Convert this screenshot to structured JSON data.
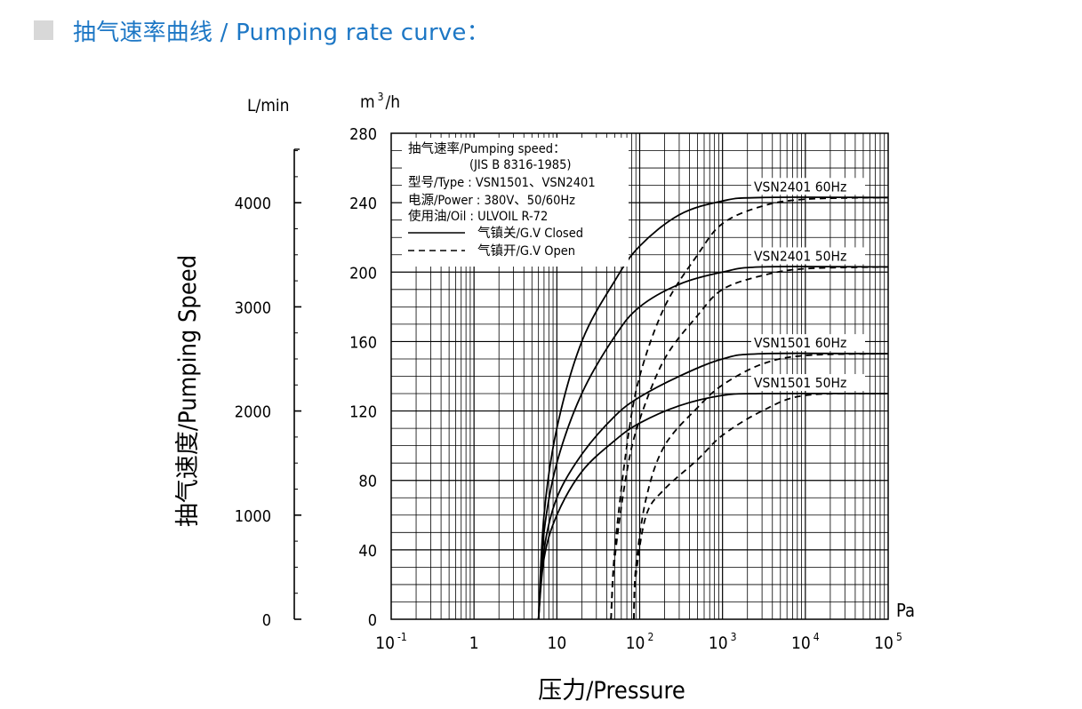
{
  "header": {
    "marker_color": "#d8d8d8",
    "title": "抽气速率曲线 / Pumping rate curve：",
    "title_color": "#1d77c5"
  },
  "chart_data": {
    "type": "line",
    "x_scale": "log",
    "xlim": [
      0.1,
      100000
    ],
    "ylim": [
      0,
      280
    ],
    "ylim_secondary": [
      0,
      4667
    ],
    "grid": true,
    "xlabel": "压力/Pressure",
    "x_unit": "Pa",
    "ylabel": "抽气速度/Pumping Speed",
    "y_unit": "m³/h",
    "y_unit_base": "m",
    "y_unit_sup": "3",
    "y_unit_rest": "/h",
    "y_secondary_unit": "L/min",
    "x_ticks": [
      {
        "value": 0.1,
        "base": "10",
        "exp": "-1"
      },
      {
        "value": 1,
        "base": "1",
        "exp": ""
      },
      {
        "value": 10,
        "base": "10",
        "exp": ""
      },
      {
        "value": 100,
        "base": "10",
        "exp": "2"
      },
      {
        "value": 1000,
        "base": "10",
        "exp": "3"
      },
      {
        "value": 10000,
        "base": "10",
        "exp": "4"
      },
      {
        "value": 100000,
        "base": "10",
        "exp": "5"
      }
    ],
    "y_ticks": [
      0,
      40,
      80,
      120,
      160,
      200,
      240,
      280
    ],
    "y_secondary_ticks": [
      0,
      1000,
      2000,
      3000,
      4000
    ],
    "legend": {
      "position": "top-left",
      "lines": [
        "抽气速率/Pumping speed：",
        "(JIS B 8316-1985)",
        "型号/Type  : VSN1501、VSN2401",
        "电源/Power  : 380V、50/60Hz",
        "使用油/Oil : ULVOIL R-72"
      ],
      "entries": [
        {
          "style": "solid",
          "label": "气镇关/G.V Closed"
        },
        {
          "style": "dashed",
          "label": "气镇开/G.V Open"
        }
      ]
    },
    "series": [
      {
        "name": "VSN2401 60Hz",
        "style": "solid",
        "x": [
          6,
          7,
          10,
          20,
          50,
          100,
          300,
          1000,
          3000,
          100000
        ],
        "y": [
          0,
          60,
          110,
          160,
          195,
          215,
          233,
          241,
          243,
          243
        ]
      },
      {
        "name": "VSN2401 50Hz",
        "style": "solid",
        "x": [
          6,
          7,
          10,
          20,
          50,
          100,
          300,
          1000,
          3000,
          100000
        ],
        "y": [
          0,
          50,
          90,
          130,
          163,
          180,
          193,
          200,
          203,
          203
        ]
      },
      {
        "name": "VSN1501 60Hz",
        "style": "solid",
        "x": [
          6,
          7,
          10,
          20,
          50,
          100,
          300,
          1000,
          3000,
          100000
        ],
        "y": [
          0,
          40,
          70,
          95,
          117,
          128,
          140,
          150,
          153,
          153
        ]
      },
      {
        "name": "VSN1501 50Hz",
        "style": "solid",
        "x": [
          6,
          7,
          10,
          20,
          50,
          100,
          300,
          1000,
          3000,
          100000
        ],
        "y": [
          0,
          35,
          60,
          85,
          103,
          113,
          123,
          129,
          130,
          130
        ]
      },
      {
        "name": "VSN2401 60Hz",
        "style": "dashed",
        "x": [
          45,
          50,
          70,
          100,
          200,
          500,
          1000,
          3000,
          10000,
          100000
        ],
        "y": [
          0,
          40,
          100,
          140,
          180,
          210,
          228,
          238,
          242,
          243
        ]
      },
      {
        "name": "VSN2401 50Hz",
        "style": "dashed",
        "x": [
          45,
          50,
          70,
          100,
          200,
          500,
          1000,
          3000,
          10000,
          100000
        ],
        "y": [
          0,
          35,
          85,
          115,
          150,
          175,
          190,
          198,
          202,
          203
        ]
      },
      {
        "name": "VSN1501 60Hz",
        "style": "dashed",
        "x": [
          85,
          90,
          120,
          200,
          500,
          1000,
          3000,
          10000,
          100000
        ],
        "y": [
          0,
          30,
          70,
          100,
          122,
          135,
          147,
          152,
          153
        ]
      },
      {
        "name": "VSN1501 50Hz",
        "style": "dashed",
        "x": [
          85,
          90,
          120,
          200,
          500,
          1000,
          3000,
          10000,
          100000
        ],
        "y": [
          0,
          25,
          60,
          75,
          92,
          106,
          120,
          129,
          130
        ]
      }
    ],
    "curve_labels": [
      {
        "text": "VSN2401 60Hz",
        "y": 243
      },
      {
        "text": "VSN2401 50Hz",
        "y": 203
      },
      {
        "text": "VSN1501 60Hz",
        "y": 153
      },
      {
        "text": "VSN1501 50Hz",
        "y": 130
      }
    ]
  }
}
